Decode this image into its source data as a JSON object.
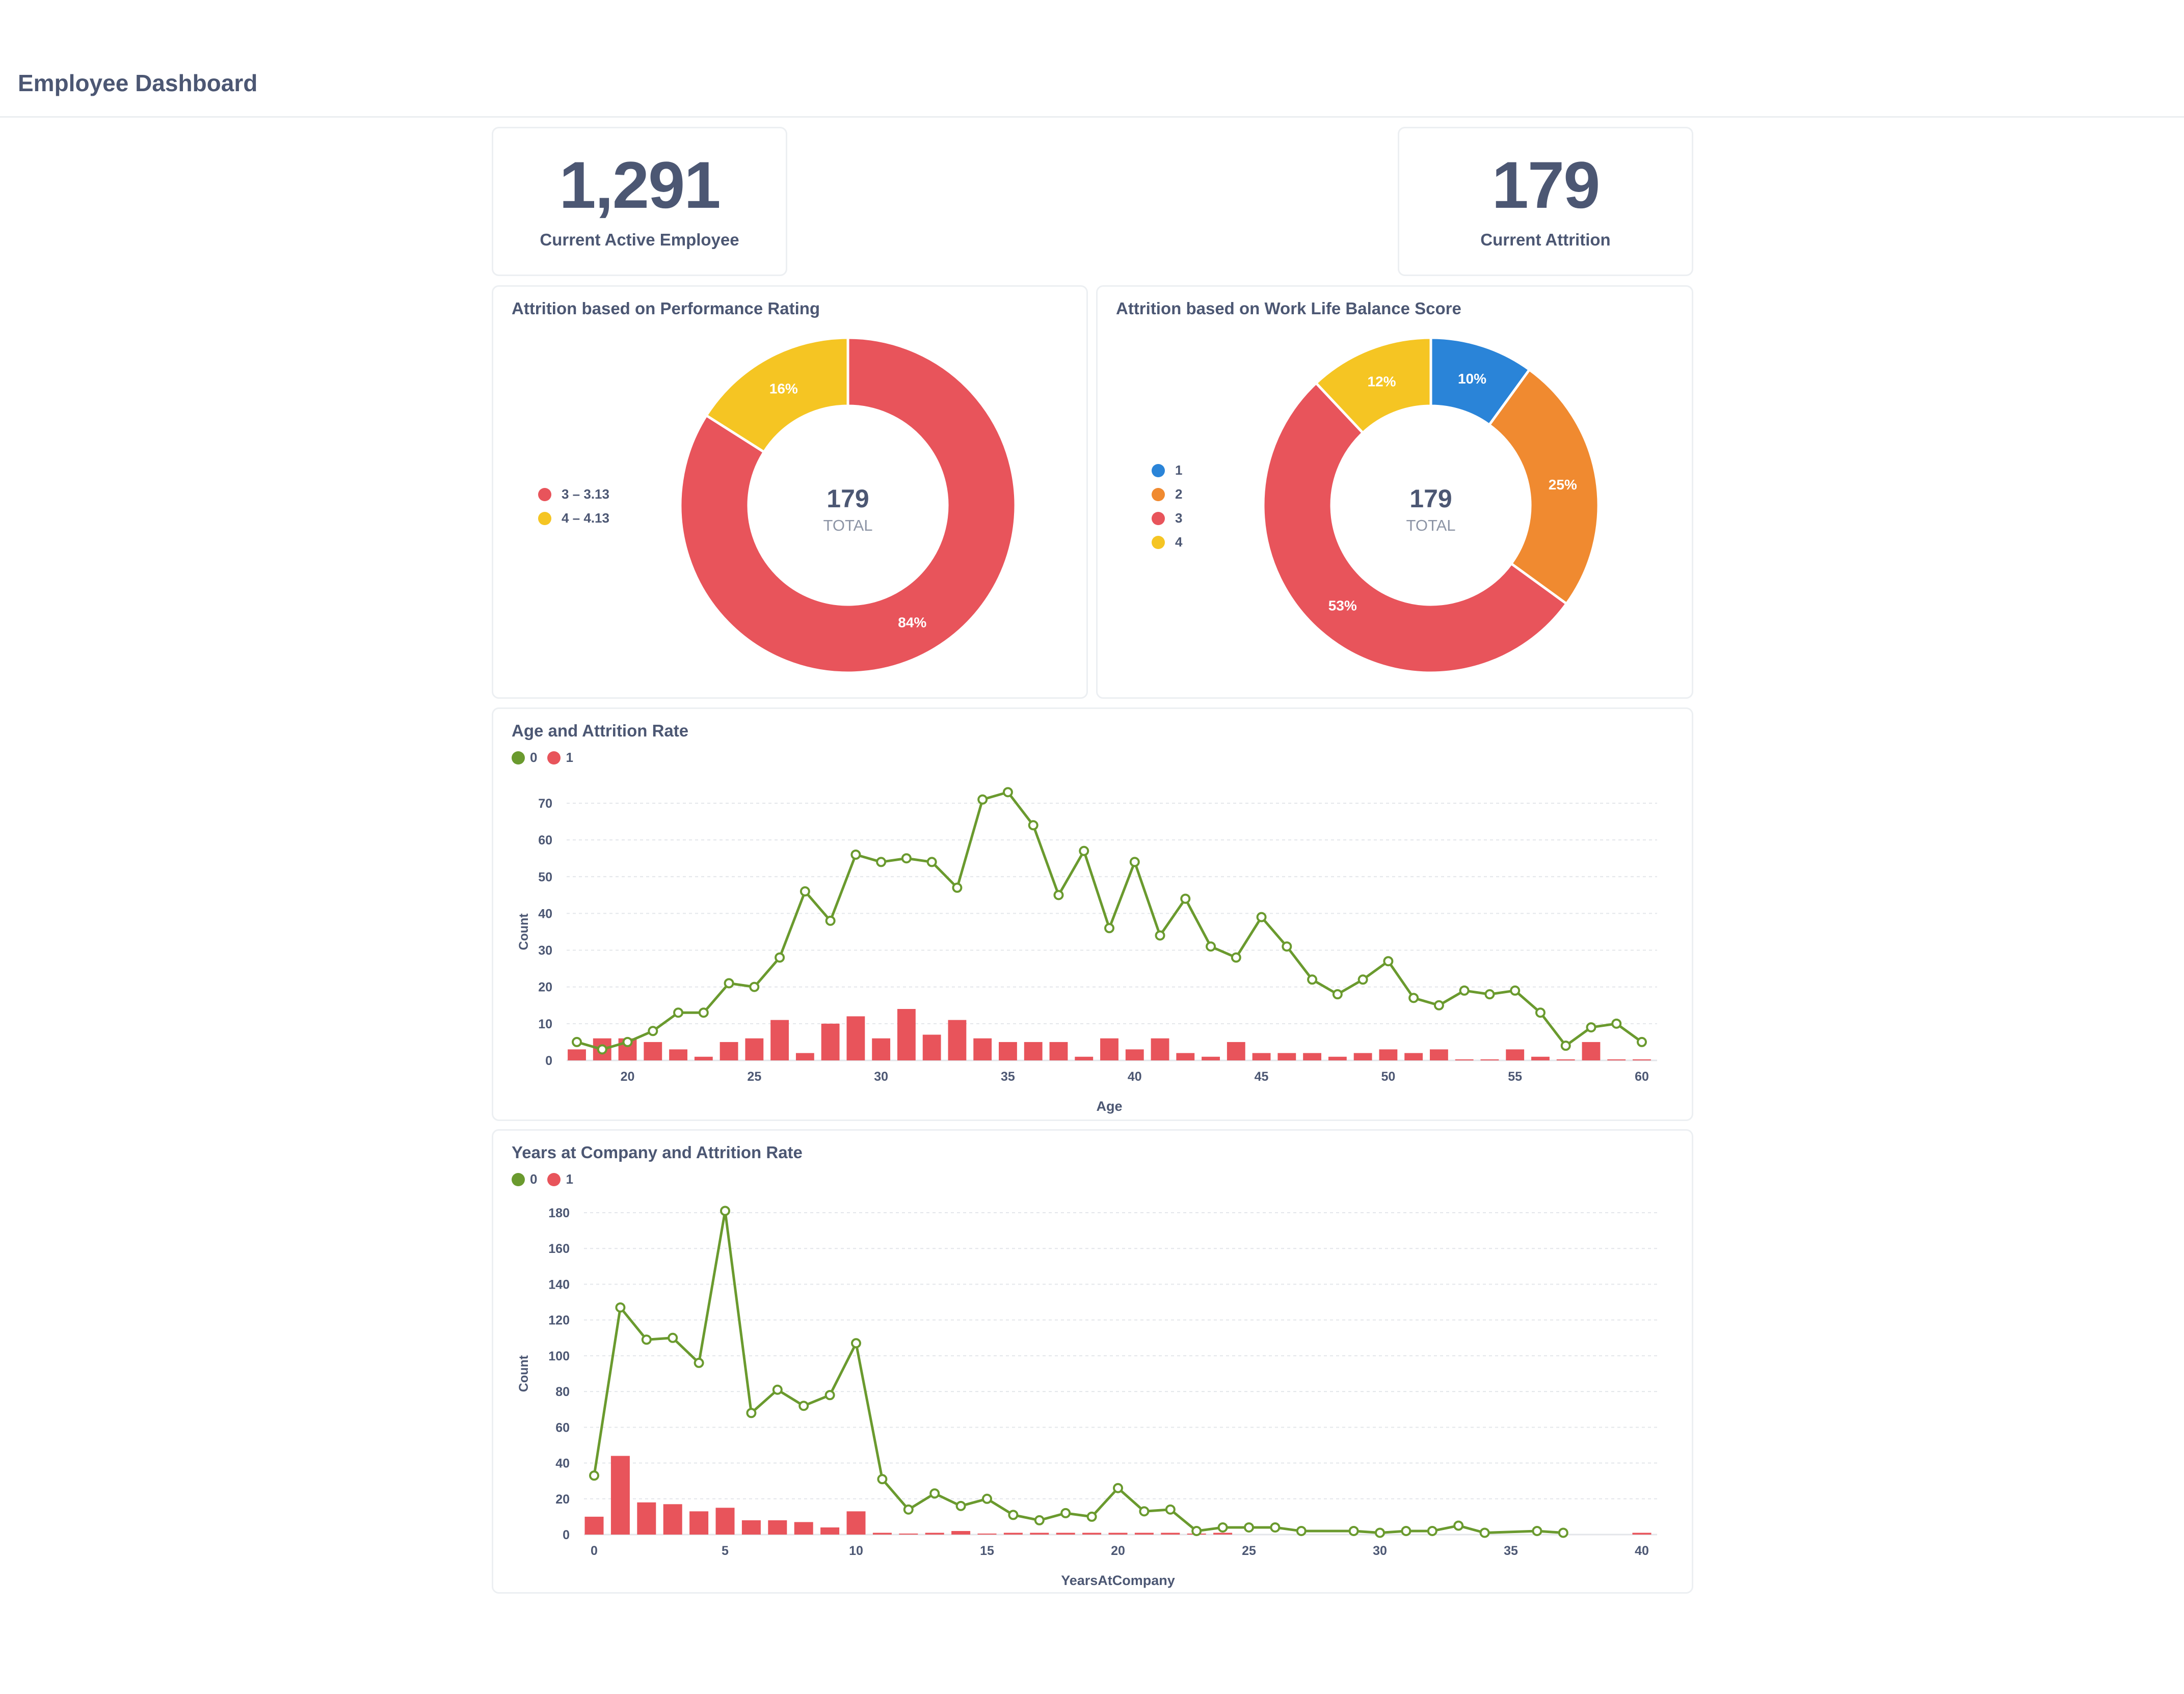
{
  "page": {
    "title": "Employee Dashboard"
  },
  "kpis": [
    {
      "value": "1,291",
      "label": "Current Active Employee"
    },
    {
      "value": "179",
      "label": "Current Attrition"
    }
  ],
  "colors": {
    "green": "#6a9a2e",
    "red": "#e8545b",
    "yellow": "#f5c523",
    "blue": "#2a84d8",
    "orange": "#f08a30",
    "text": "#4c5773"
  },
  "chart_data": [
    {
      "type": "pie",
      "title": "Attrition based on Performance Rating",
      "center_value": "179",
      "center_label": "TOTAL",
      "slices": [
        {
          "label": "3 – 3.13",
          "value": 84,
          "pct_label": "84%",
          "color": "#e8545b"
        },
        {
          "label": "4 – 4.13",
          "value": 16,
          "pct_label": "16%",
          "color": "#f5c523"
        }
      ]
    },
    {
      "type": "pie",
      "title": "Attrition based on Work Life Balance Score",
      "center_value": "179",
      "center_label": "TOTAL",
      "slices": [
        {
          "label": "1",
          "value": 10,
          "pct_label": "10%",
          "color": "#2a84d8"
        },
        {
          "label": "2",
          "value": 25,
          "pct_label": "25%",
          "color": "#f08a30"
        },
        {
          "label": "3",
          "value": 53,
          "pct_label": "53%",
          "color": "#e8545b"
        },
        {
          "label": "4",
          "value": 12,
          "pct_label": "12%",
          "color": "#f5c523"
        }
      ]
    },
    {
      "type": "bar",
      "title": "Age and Attrition Rate",
      "xlabel": "Age",
      "ylabel": "Count",
      "xlim": [
        18,
        60
      ],
      "ylim": [
        0,
        70
      ],
      "xticks": [
        20,
        25,
        30,
        35,
        40,
        45,
        50,
        55,
        60
      ],
      "yticks": [
        0,
        10,
        20,
        30,
        40,
        50,
        60,
        70
      ],
      "grid": true,
      "legend": "top-left",
      "series": [
        {
          "name": "0",
          "kind": "line",
          "color": "#6a9a2e",
          "x": [
            18,
            19,
            20,
            21,
            22,
            23,
            24,
            25,
            26,
            27,
            28,
            29,
            30,
            31,
            32,
            33,
            34,
            35,
            36,
            37,
            38,
            39,
            40,
            41,
            42,
            43,
            44,
            45,
            46,
            47,
            48,
            49,
            50,
            51,
            52,
            53,
            54,
            55,
            56,
            57,
            58,
            59,
            60
          ],
          "values": [
            5,
            3,
            5,
            8,
            13,
            13,
            21,
            20,
            28,
            46,
            38,
            56,
            54,
            55,
            54,
            47,
            71,
            73,
            64,
            45,
            57,
            36,
            54,
            34,
            44,
            31,
            28,
            39,
            31,
            22,
            18,
            22,
            27,
            17,
            15,
            19,
            18,
            19,
            13,
            4,
            9,
            10,
            5
          ]
        },
        {
          "name": "1",
          "kind": "bar",
          "color": "#e8545b",
          "x": [
            18,
            19,
            20,
            21,
            22,
            23,
            24,
            25,
            26,
            27,
            28,
            29,
            30,
            31,
            32,
            33,
            34,
            35,
            36,
            37,
            38,
            39,
            40,
            41,
            42,
            43,
            44,
            45,
            46,
            47,
            48,
            49,
            50,
            51,
            52,
            53,
            54,
            55,
            56,
            57,
            58,
            59,
            60
          ],
          "values": [
            3,
            6,
            6,
            5,
            3,
            1,
            5,
            6,
            11,
            2,
            10,
            12,
            6,
            14,
            7,
            11,
            6,
            5,
            5,
            5,
            1,
            6,
            3,
            6,
            2,
            1,
            5,
            2,
            2,
            2,
            1,
            2,
            3,
            2,
            3,
            0,
            0,
            3,
            1,
            0,
            5,
            0,
            0
          ]
        }
      ]
    },
    {
      "type": "bar",
      "title": "Years at Company and Attrition Rate",
      "xlabel": "YearsAtCompany",
      "ylabel": "Count",
      "xlim": [
        0,
        40
      ],
      "ylim": [
        0,
        180
      ],
      "xticks": [
        0,
        5,
        10,
        15,
        20,
        25,
        30,
        35,
        40
      ],
      "yticks": [
        0,
        20,
        40,
        60,
        80,
        100,
        120,
        140,
        160,
        180
      ],
      "grid": true,
      "legend": "top-left",
      "series": [
        {
          "name": "0",
          "kind": "line",
          "color": "#6a9a2e",
          "x": [
            0,
            1,
            2,
            3,
            4,
            5,
            6,
            7,
            8,
            9,
            10,
            11,
            12,
            13,
            14,
            15,
            16,
            17,
            18,
            19,
            20,
            21,
            22,
            23,
            24,
            25,
            26,
            27,
            29,
            30,
            31,
            32,
            33,
            34,
            36,
            37
          ],
          "values": [
            33,
            127,
            109,
            110,
            96,
            181,
            68,
            81,
            72,
            78,
            107,
            31,
            14,
            23,
            16,
            20,
            11,
            8,
            12,
            10,
            26,
            13,
            14,
            2,
            4,
            4,
            4,
            2,
            2,
            1,
            2,
            2,
            5,
            1,
            2,
            1
          ]
        },
        {
          "name": "1",
          "kind": "bar",
          "color": "#e8545b",
          "x": [
            0,
            1,
            2,
            3,
            4,
            5,
            6,
            7,
            8,
            9,
            10,
            11,
            12,
            13,
            14,
            15,
            16,
            17,
            18,
            19,
            20,
            21,
            22,
            23,
            24,
            40
          ],
          "values": [
            10,
            44,
            18,
            17,
            13,
            15,
            8,
            8,
            7,
            4,
            13,
            1,
            0,
            1,
            2,
            0,
            1,
            1,
            1,
            1,
            1,
            1,
            1,
            0,
            1,
            1
          ]
        }
      ]
    }
  ]
}
